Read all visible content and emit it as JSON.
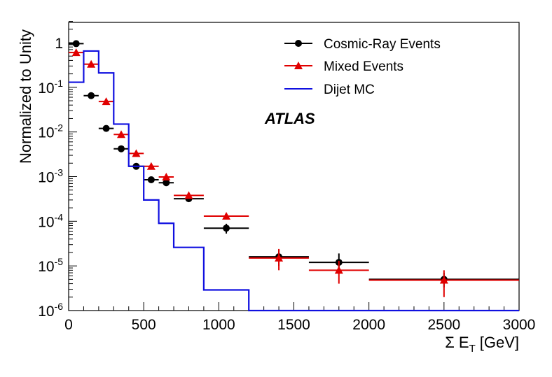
{
  "chart_data": {
    "type": "scatter",
    "experiment_label": "ATLAS",
    "xlabel_sigma": "Σ E",
    "xlabel_sub": "T",
    "xlabel_unit": "[GeV]",
    "ylabel": "Normalized to Unity",
    "xlim": [
      0,
      3000
    ],
    "ylim": [
      1e-06,
      3
    ],
    "yscale": "log",
    "x_ticks": [
      0,
      500,
      1000,
      1500,
      2000,
      2500,
      3000
    ],
    "x_tick_labels": [
      "0",
      "500",
      "1000",
      "1500",
      "2000",
      "2500",
      "3000"
    ],
    "y_ticks": [
      {
        "value": 1,
        "base": "1",
        "exp": ""
      },
      {
        "value": 0.1,
        "base": "10",
        "exp": "-1"
      },
      {
        "value": 0.01,
        "base": "10",
        "exp": "-2"
      },
      {
        "value": 0.001,
        "base": "10",
        "exp": "-3"
      },
      {
        "value": 0.0001,
        "base": "10",
        "exp": "-4"
      },
      {
        "value": 1e-05,
        "base": "10",
        "exp": "-5"
      },
      {
        "value": 1e-06,
        "base": "10",
        "exp": "-6"
      }
    ],
    "legend": {
      "placement": "top-right",
      "entries": [
        "Cosmic-Ray Events",
        "Mixed Events",
        "Dijet MC"
      ]
    },
    "series": [
      {
        "name": "Cosmic-Ray Events",
        "color": "#000000",
        "marker": "circle",
        "points": [
          {
            "x0": 0,
            "x1": 100,
            "y": 0.95
          },
          {
            "x0": 100,
            "x1": 200,
            "y": 0.065
          },
          {
            "x0": 200,
            "x1": 300,
            "y": 0.012
          },
          {
            "x0": 300,
            "x1": 400,
            "y": 0.0042
          },
          {
            "x0": 400,
            "x1": 500,
            "y": 0.0017
          },
          {
            "x0": 500,
            "x1": 600,
            "y": 0.00085
          },
          {
            "x0": 600,
            "x1": 700,
            "y": 0.00073
          },
          {
            "x0": 700,
            "x1": 900,
            "y": 0.00032
          },
          {
            "x0": 900,
            "x1": 1200,
            "y": 7e-05,
            "ylo": 5.3e-05,
            "yhi": 8.8e-05
          },
          {
            "x0": 1200,
            "x1": 1600,
            "y": 1.6e-05,
            "ylo": 1e-05,
            "yhi": 2.3e-05
          },
          {
            "x0": 1600,
            "x1": 2000,
            "y": 1.2e-05,
            "ylo": 7e-06,
            "yhi": 1.9e-05
          },
          {
            "x0": 2000,
            "x1": 3000,
            "y": 5e-06,
            "ylo": 3.3e-06,
            "yhi": 7e-06
          }
        ]
      },
      {
        "name": "Mixed Events",
        "color": "#e00000",
        "marker": "triangle",
        "points": [
          {
            "x0": 0,
            "x1": 100,
            "y": 0.6
          },
          {
            "x0": 100,
            "x1": 200,
            "y": 0.33
          },
          {
            "x0": 200,
            "x1": 300,
            "y": 0.048
          },
          {
            "x0": 300,
            "x1": 400,
            "y": 0.0088
          },
          {
            "x0": 400,
            "x1": 500,
            "y": 0.0033
          },
          {
            "x0": 500,
            "x1": 600,
            "y": 0.0017
          },
          {
            "x0": 600,
            "x1": 700,
            "y": 0.00098
          },
          {
            "x0": 700,
            "x1": 900,
            "y": 0.00038
          },
          {
            "x0": 900,
            "x1": 1200,
            "y": 0.00013
          },
          {
            "x0": 1200,
            "x1": 1600,
            "y": 1.5e-05,
            "ylo": 8e-06,
            "yhi": 2.4e-05
          },
          {
            "x0": 1600,
            "x1": 2000,
            "y": 8e-06,
            "ylo": 4e-06,
            "yhi": 1.3e-05
          },
          {
            "x0": 2000,
            "x1": 3000,
            "y": 4.8e-06,
            "ylo": 2e-06,
            "yhi": 8e-06
          }
        ]
      },
      {
        "name": "Dijet MC",
        "color": "#1010e0",
        "style": "step",
        "bins": [
          0,
          100,
          200,
          300,
          400,
          500,
          600,
          700,
          900,
          1200,
          3000
        ],
        "values": [
          0.13,
          0.65,
          0.21,
          0.015,
          0.0017,
          0.0003,
          9e-05,
          2.6e-05,
          2.9e-06,
          1e-06
        ]
      }
    ]
  }
}
